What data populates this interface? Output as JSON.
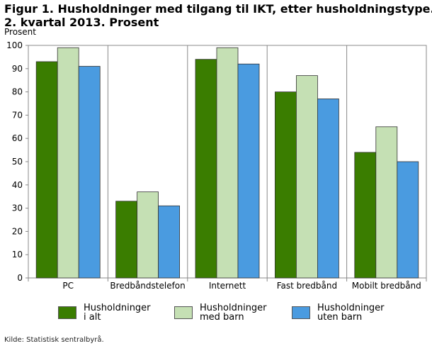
{
  "figure": {
    "title_line1": "Figur 1. Husholdninger med tilgang til IKT, etter husholdningstype.",
    "title_line2": "2. kvartal 2013. Prosent",
    "source": "Kilde: Statistisk sentralbyrå."
  },
  "chart_data": {
    "type": "bar",
    "title": "Figur 1. Husholdninger med tilgang til IKT, etter husholdningstype. 2. kvartal 2013. Prosent",
    "ylabel": "Prosent",
    "xlabel": "",
    "ylim": [
      0,
      100
    ],
    "yticks": [
      0,
      10,
      20,
      30,
      40,
      50,
      60,
      70,
      80,
      90,
      100
    ],
    "grid": false,
    "legend_position": "bottom",
    "categories": [
      "PC",
      "Bredbåndstelefon",
      "Internett",
      "Fast bredbånd",
      "Mobilt bredbånd"
    ],
    "series": [
      {
        "name": "Husholdninger\ni alt",
        "color": "#3a7d00",
        "values": [
          93,
          33,
          94,
          80,
          54
        ]
      },
      {
        "name": "Husholdninger\nmed barn",
        "color": "#c5e0b4",
        "values": [
          99,
          37,
          99,
          87,
          65
        ]
      },
      {
        "name": "Husholdninger\nuten barn",
        "color": "#4a9be0",
        "values": [
          91,
          31,
          92,
          77,
          50
        ]
      }
    ]
  }
}
